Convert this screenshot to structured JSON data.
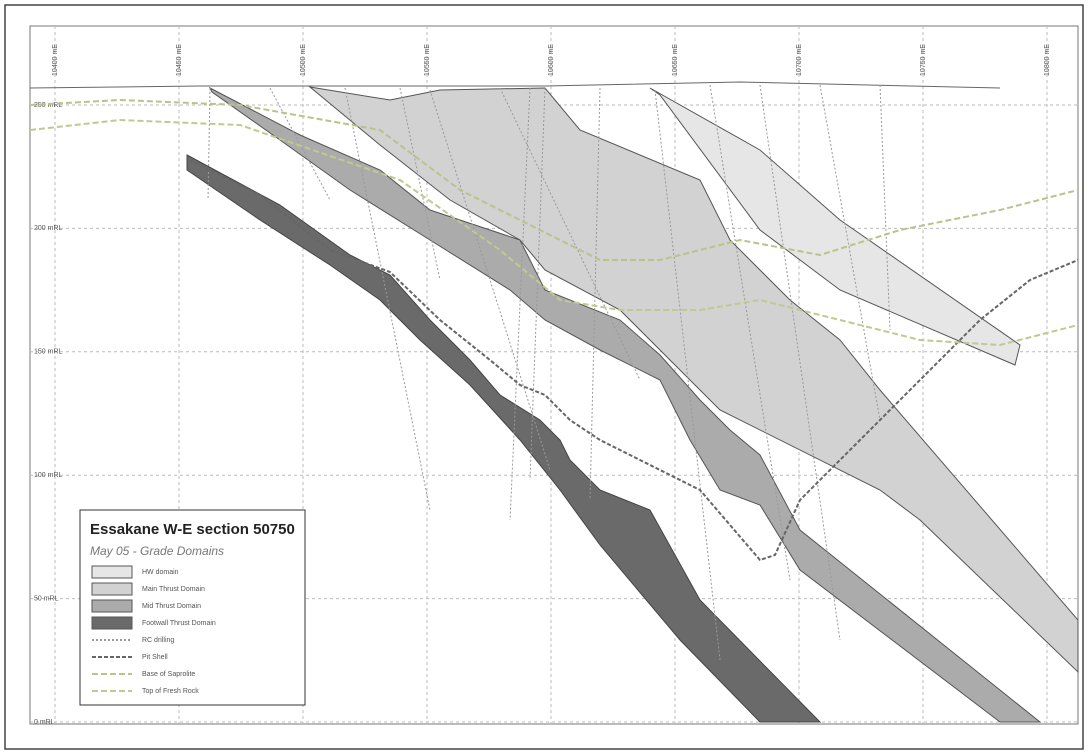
{
  "diagram": {
    "title": "Essakane W-E section 50750",
    "subtitle": "May 05 - Grade Domains",
    "legend": [
      "HW domain",
      "Main Thrust Domain",
      "Mid Thrust Domain",
      "Footwall Thrust Domain",
      "RC drilling",
      "Pit Shell",
      "Base of Saprolite",
      "Top of Fresh Rock"
    ],
    "elevation_labels": [
      "250 mRL",
      "200 mRL",
      "150 mRL",
      "100 mRL",
      "50 mRL",
      "0 mRL"
    ],
    "easting_labels": [
      "10400 mE",
      "10450 mE",
      "10500 mE",
      "10550 mE",
      "10600 mE",
      "10650 mE",
      "10700 mE",
      "10750 mE",
      "10800 mE"
    ]
  }
}
